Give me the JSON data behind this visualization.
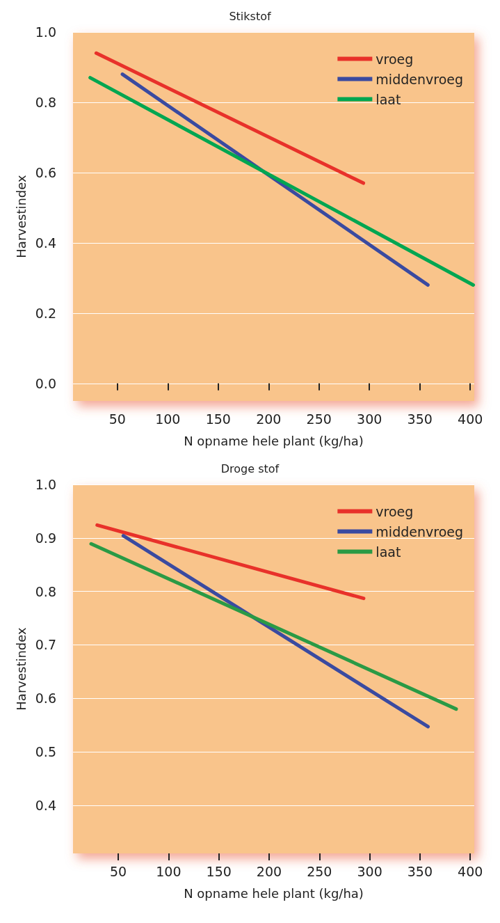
{
  "chart_data": [
    {
      "type": "line",
      "title": "Stikstof",
      "xlabel": "N opname hele plant (kg/ha)",
      "ylabel": "Harvestindex",
      "xlim": [
        6,
        404
      ],
      "ylim": [
        -0.05,
        1.0
      ],
      "xticks": [
        50,
        100,
        150,
        200,
        250,
        300,
        350,
        400
      ],
      "yticks": [
        {
          "value": 0,
          "label": "0.0"
        },
        {
          "value": 0.2,
          "label": "0.2"
        },
        {
          "value": 0.4,
          "label": "0.4"
        },
        {
          "value": 0.6,
          "label": "0.6"
        },
        {
          "value": 0.8,
          "label": "0.8"
        },
        {
          "value": 1.0,
          "label": "1.0"
        }
      ],
      "grid": "y",
      "legend": "top right",
      "marker": "none",
      "line_style": "solid",
      "series": [
        {
          "name": "vroeg",
          "color": "#e8312a",
          "x": [
            29,
            294
          ],
          "values": [
            0.94,
            0.57
          ]
        },
        {
          "name": "middenvroeg",
          "color": "#3a4aa0",
          "x": [
            55,
            358
          ],
          "values": [
            0.88,
            0.28
          ]
        },
        {
          "name": "laat",
          "color": "#00a651",
          "x": [
            23,
            403
          ],
          "values": [
            0.87,
            0.28
          ]
        }
      ]
    },
    {
      "type": "line",
      "title": "Droge stof",
      "xlabel": "N opname hele plant (kg/ha)",
      "ylabel": "Harvestindex",
      "xlim": [
        5,
        404
      ],
      "ylim": [
        0.31,
        1.0
      ],
      "xticks": [
        50,
        100,
        150,
        200,
        250,
        300,
        350,
        400
      ],
      "yticks": [
        {
          "value": 0.4,
          "label": "0.4"
        },
        {
          "value": 0.5,
          "label": "0.5"
        },
        {
          "value": 0.6,
          "label": "0.6"
        },
        {
          "value": 0.7,
          "label": "0.7"
        },
        {
          "value": 0.8,
          "label": "0.8"
        },
        {
          "value": 0.9,
          "label": "0.9"
        },
        {
          "value": 1.0,
          "label": "1.0"
        }
      ],
      "grid": "y",
      "legend": "top right",
      "marker": "none",
      "line_style": "solid",
      "series": [
        {
          "name": "vroeg",
          "color": "#e8312a",
          "x": [
            29,
            294
          ],
          "values": [
            0.924,
            0.787
          ]
        },
        {
          "name": "middenvroeg",
          "color": "#3a4aa0",
          "x": [
            55,
            358
          ],
          "values": [
            0.904,
            0.547
          ]
        },
        {
          "name": "laat",
          "color": "#2a9a45",
          "x": [
            23,
            386
          ],
          "values": [
            0.889,
            0.58
          ]
        }
      ]
    }
  ]
}
